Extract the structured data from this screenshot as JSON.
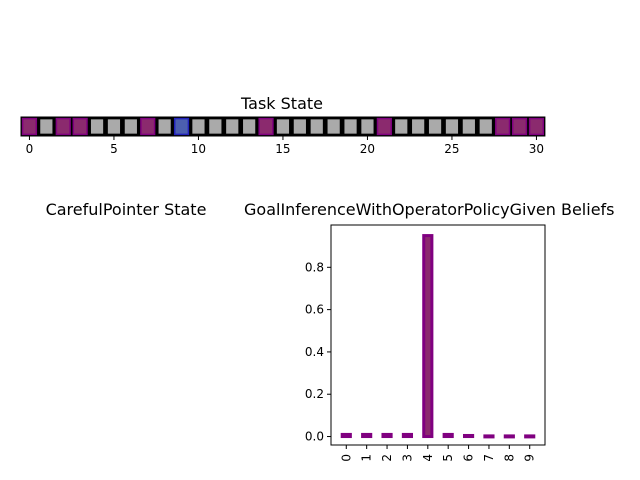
{
  "task_panel": {
    "title": "Task State",
    "cell_count": 31,
    "highlighted_cells": [
      0,
      2,
      3,
      7,
      14,
      21,
      28,
      29,
      30
    ],
    "current_cell": 9,
    "x_ticks": [
      0,
      5,
      10,
      15,
      20,
      25,
      30
    ],
    "colors": {
      "cell": "#aaaaaa",
      "highlight": "#8b2a6e",
      "highlight_border": "#800080",
      "current": "#4c5fb0",
      "current_border": "#2222bb",
      "border": "#000000"
    }
  },
  "pointer_panel": {
    "title": "CarefulPointer State"
  },
  "chart_data": {
    "type": "bar",
    "title": "GoalInferenceWithOperatorPolicyGiven Beliefs",
    "categories": [
      "0",
      "1",
      "2",
      "3",
      "4",
      "5",
      "6",
      "7",
      "8",
      "9"
    ],
    "values": [
      0.01,
      0.01,
      0.01,
      0.01,
      0.95,
      0.01,
      0.005,
      0.003,
      0.003,
      0.003
    ],
    "ylim": [
      -0.04,
      1.0
    ],
    "y_ticks": [
      "0.0",
      "0.2",
      "0.4",
      "0.6",
      "0.8"
    ],
    "xlabel": "",
    "ylabel": "",
    "grid": false,
    "colors": {
      "bar_fill": "#8b2a6e",
      "bar_edge": "#800080"
    }
  }
}
